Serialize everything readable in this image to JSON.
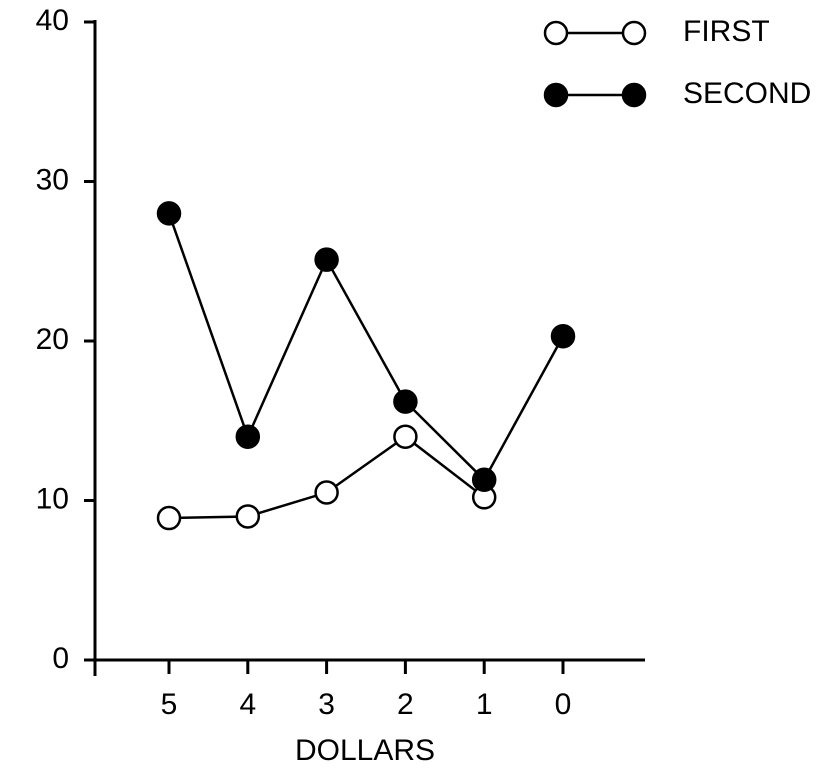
{
  "chart_data": {
    "type": "line",
    "x_label": "DOLLARS",
    "categories": [
      "5",
      "4",
      "3",
      "2",
      "1",
      "0"
    ],
    "series": [
      {
        "name": "FIRST",
        "color": "#ffffff",
        "values": [
          8.9,
          9.0,
          10.5,
          14.0,
          10.2,
          null
        ]
      },
      {
        "name": "SECOND",
        "color": "#000000",
        "values": [
          28.0,
          14.0,
          25.1,
          16.2,
          11.3,
          20.3
        ]
      }
    ],
    "ylim": [
      0,
      40
    ],
    "yticks": [
      0,
      10,
      20,
      30,
      40
    ],
    "legend": "upper right"
  }
}
